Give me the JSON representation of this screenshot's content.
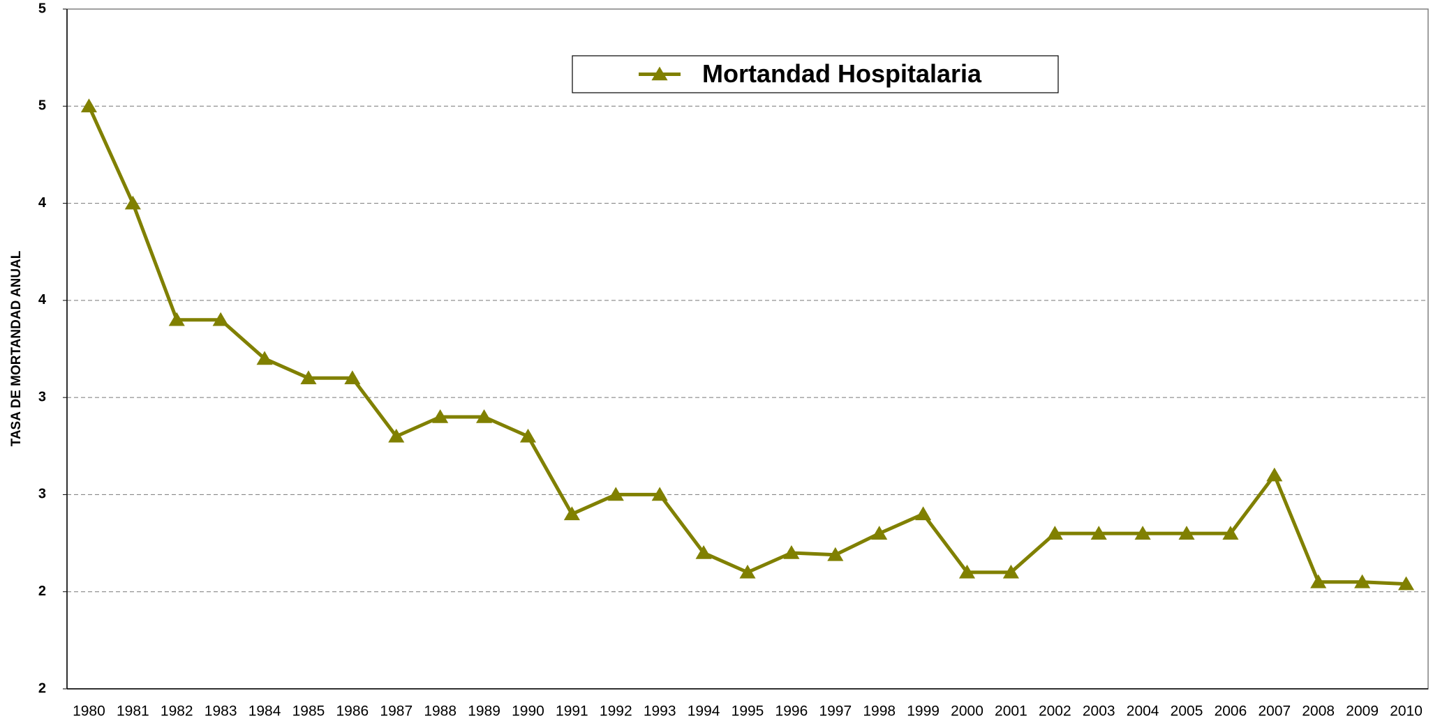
{
  "chart_data": {
    "type": "line",
    "y_label": "TASA DE MORTANDAD ANUAL",
    "categories": [
      "1980",
      "1981",
      "1982",
      "1983",
      "1984",
      "1985",
      "1986",
      "1987",
      "1988",
      "1989",
      "1990",
      "1991",
      "1992",
      "1993",
      "1994",
      "1995",
      "1996",
      "1997",
      "1998",
      "1999",
      "2000",
      "2001",
      "2002",
      "2003",
      "2004",
      "2005",
      "2006",
      "2007",
      "2008",
      "2009",
      "2010"
    ],
    "series": [
      {
        "name": "Mortandad Hospitalaria",
        "color": "#808000",
        "values": [
          4.5,
          4.0,
          3.4,
          3.4,
          3.2,
          3.1,
          3.1,
          2.8,
          2.9,
          2.9,
          2.8,
          2.4,
          2.5,
          2.5,
          2.2,
          2.1,
          2.2,
          2.19,
          2.3,
          2.4,
          2.1,
          2.1,
          2.3,
          2.3,
          2.3,
          2.3,
          2.3,
          2.6,
          2.05,
          2.05,
          2.04
        ]
      }
    ],
    "ylim": [
      1.5,
      5
    ],
    "yticks": [
      {
        "value": 1.5,
        "label": "2"
      },
      2,
      {
        "value": 2.5,
        "label": "3"
      },
      3,
      {
        "value": 3.5,
        "label": "4"
      },
      4,
      {
        "value": 4.5,
        "label": "5"
      },
      5
    ],
    "grid": true,
    "legend": "top"
  }
}
